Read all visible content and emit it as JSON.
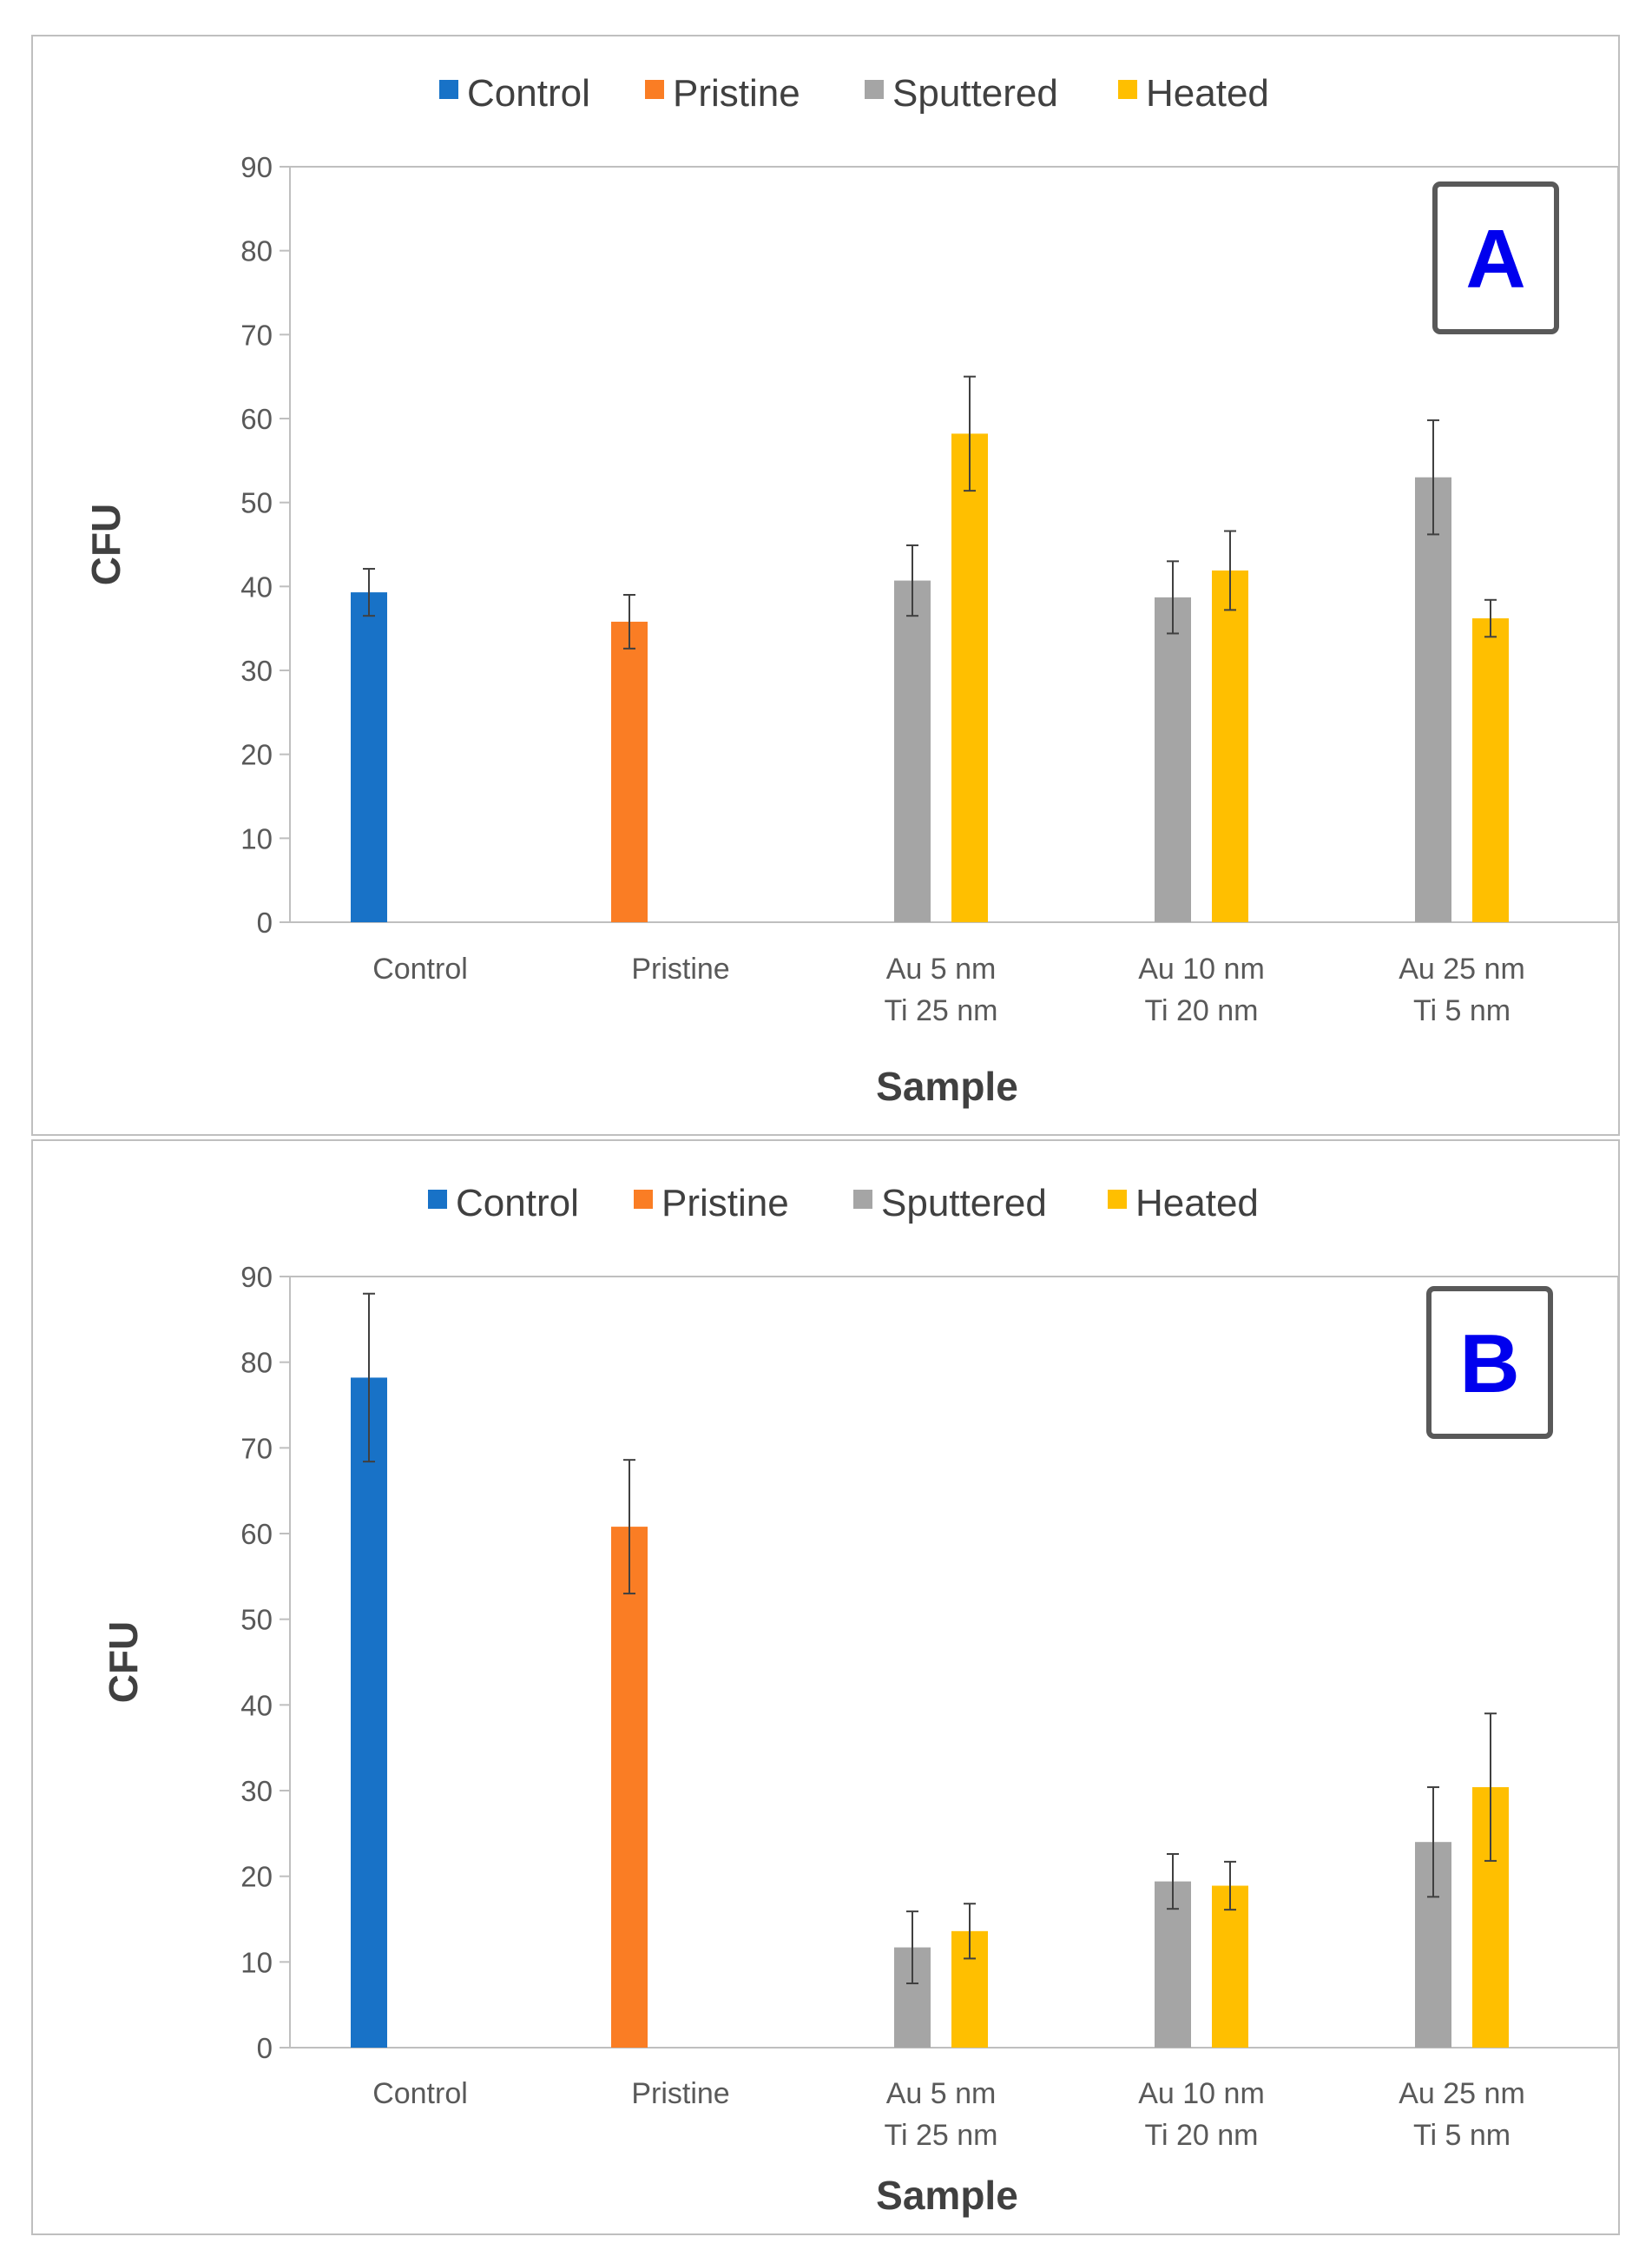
{
  "chart_data": [
    {
      "id": "A",
      "type": "bar",
      "panel_label": "A",
      "categories": [
        [
          "Control"
        ],
        [
          "Pristine"
        ],
        [
          "Au 5 nm",
          "Ti 25 nm"
        ],
        [
          "Au 10 nm",
          "Ti 20 nm"
        ],
        [
          "Au 25 nm",
          "Ti 5 nm"
        ]
      ],
      "series": [
        {
          "name": "Control",
          "color": "#1872c7",
          "values": [
            39.3,
            null,
            null,
            null,
            null
          ],
          "errors": [
            2.8,
            null,
            null,
            null,
            null
          ]
        },
        {
          "name": "Pristine",
          "color": "#fa7d24",
          "values": [
            null,
            35.8,
            null,
            null,
            null
          ],
          "errors": [
            null,
            3.2,
            null,
            null,
            null
          ]
        },
        {
          "name": "Sputtered",
          "color": "#a5a5a5",
          "values": [
            null,
            null,
            40.7,
            38.7,
            53.0
          ],
          "errors": [
            null,
            null,
            4.2,
            4.3,
            6.8
          ]
        },
        {
          "name": "Heated",
          "color": "#ffbf00",
          "values": [
            null,
            null,
            58.2,
            41.9,
            36.2
          ],
          "errors": [
            null,
            null,
            6.8,
            4.7,
            2.2
          ]
        }
      ],
      "ylim": [
        0,
        90
      ],
      "yticks": [
        0,
        10,
        20,
        30,
        40,
        50,
        60,
        70,
        80,
        90
      ],
      "xlabel": "Sample",
      "ylabel": "CFU",
      "legend_position": "top"
    },
    {
      "id": "B",
      "type": "bar",
      "panel_label": "B",
      "categories": [
        [
          "Control"
        ],
        [
          "Pristine"
        ],
        [
          "Au 5 nm",
          "Ti 25 nm"
        ],
        [
          "Au 10 nm",
          "Ti 20 nm"
        ],
        [
          "Au 25 nm",
          "Ti 5 nm"
        ]
      ],
      "series": [
        {
          "name": "Control",
          "color": "#1872c7",
          "values": [
            78.2,
            null,
            null,
            null,
            null
          ],
          "errors": [
            9.8,
            null,
            null,
            null,
            null
          ]
        },
        {
          "name": "Pristine",
          "color": "#fa7d24",
          "values": [
            null,
            60.8,
            null,
            null,
            null
          ],
          "errors": [
            null,
            7.8,
            null,
            null,
            null
          ]
        },
        {
          "name": "Sputtered",
          "color": "#a5a5a5",
          "values": [
            null,
            null,
            11.7,
            19.4,
            24.0
          ],
          "errors": [
            null,
            null,
            4.2,
            3.2,
            6.4
          ]
        },
        {
          "name": "Heated",
          "color": "#ffbf00",
          "values": [
            null,
            null,
            13.6,
            18.9,
            30.4
          ],
          "errors": [
            null,
            null,
            3.2,
            2.8,
            8.6
          ]
        }
      ],
      "ylim": [
        0,
        90
      ],
      "yticks": [
        0,
        10,
        20,
        30,
        40,
        50,
        60,
        70,
        80,
        90
      ],
      "xlabel": "Sample",
      "ylabel": "CFU",
      "legend_position": "top"
    }
  ]
}
